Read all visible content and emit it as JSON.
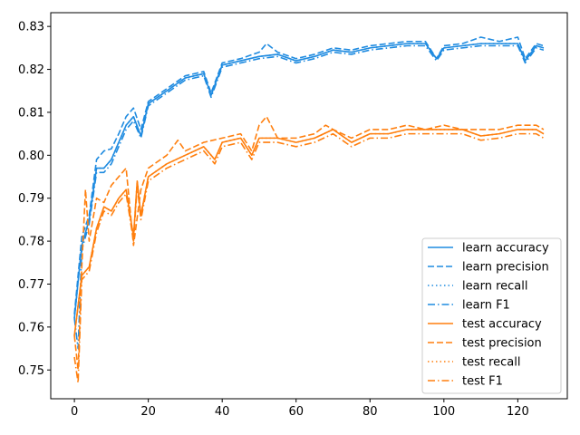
{
  "chart_data": {
    "type": "line",
    "title": "",
    "xlabel": "",
    "ylabel": "",
    "xlim": [
      -6.4,
      133.4
    ],
    "ylim": [
      0.7433,
      0.8332
    ],
    "xticks": [
      0,
      20,
      40,
      60,
      80,
      100,
      120
    ],
    "yticks": [
      0.75,
      0.76,
      0.77,
      0.78,
      0.79,
      0.8,
      0.81,
      0.82,
      0.83
    ],
    "ytick_labels": [
      "0.75",
      "0.76",
      "0.77",
      "0.78",
      "0.79",
      "0.80",
      "0.81",
      "0.82",
      "0.83"
    ],
    "grid": false,
    "legend_position": "lower-right",
    "colors": {
      "learn": "#1f8be0",
      "test": "#ff7f0e"
    },
    "series": [
      {
        "name": "learn accuracy",
        "group": "learn",
        "dash": "solid",
        "x": [
          0,
          2,
          4,
          6,
          8,
          10,
          12,
          14,
          16,
          18,
          20,
          25,
          30,
          35,
          37,
          40,
          45,
          50,
          55,
          60,
          65,
          70,
          75,
          80,
          85,
          90,
          95,
          98,
          100,
          105,
          110,
          115,
          120,
          122,
          125,
          127
        ],
        "y": [
          0.762,
          0.779,
          0.785,
          0.797,
          0.797,
          0.799,
          0.803,
          0.807,
          0.809,
          0.8045,
          0.812,
          0.815,
          0.818,
          0.819,
          0.814,
          0.821,
          0.822,
          0.823,
          0.8235,
          0.822,
          0.823,
          0.8245,
          0.824,
          0.825,
          0.8255,
          0.826,
          0.826,
          0.8225,
          0.825,
          0.8255,
          0.826,
          0.826,
          0.826,
          0.822,
          0.8255,
          0.825
        ]
      },
      {
        "name": "learn precision",
        "group": "learn",
        "dash": "dashed",
        "x": [
          0,
          2,
          4,
          6,
          8,
          10,
          12,
          14,
          16,
          18,
          20,
          25,
          30,
          35,
          37,
          40,
          45,
          50,
          52,
          55,
          60,
          65,
          70,
          75,
          80,
          85,
          90,
          95,
          98,
          100,
          105,
          110,
          115,
          120,
          122,
          125,
          127
        ],
        "y": [
          0.763,
          0.781,
          0.786,
          0.799,
          0.801,
          0.8015,
          0.805,
          0.809,
          0.811,
          0.806,
          0.8125,
          0.8155,
          0.8185,
          0.8195,
          0.8145,
          0.8215,
          0.8225,
          0.824,
          0.826,
          0.824,
          0.8225,
          0.8235,
          0.825,
          0.8245,
          0.8255,
          0.826,
          0.8265,
          0.8265,
          0.8225,
          0.8255,
          0.826,
          0.8275,
          0.8265,
          0.8275,
          0.8225,
          0.826,
          0.8255
        ]
      },
      {
        "name": "learn recall",
        "group": "learn",
        "dash": "dotted",
        "x": [
          0,
          2,
          4,
          6,
          8,
          10,
          12,
          14,
          16,
          18,
          20,
          25,
          30,
          35,
          37,
          40,
          45,
          50,
          55,
          60,
          65,
          70,
          75,
          80,
          85,
          90,
          95,
          98,
          100,
          105,
          110,
          115,
          120,
          122,
          125,
          127
        ],
        "y": [
          0.762,
          0.779,
          0.785,
          0.797,
          0.797,
          0.799,
          0.803,
          0.807,
          0.809,
          0.8045,
          0.812,
          0.815,
          0.818,
          0.819,
          0.814,
          0.821,
          0.822,
          0.823,
          0.8235,
          0.822,
          0.823,
          0.8245,
          0.824,
          0.825,
          0.8255,
          0.826,
          0.826,
          0.8225,
          0.825,
          0.8255,
          0.826,
          0.826,
          0.826,
          0.822,
          0.8255,
          0.825
        ]
      },
      {
        "name": "learn F1",
        "group": "learn",
        "dash": "dashdot",
        "x": [
          0,
          1,
          2,
          4,
          6,
          8,
          10,
          12,
          14,
          16,
          18,
          20,
          25,
          30,
          35,
          37,
          40,
          45,
          50,
          55,
          60,
          65,
          70,
          75,
          80,
          85,
          90,
          95,
          98,
          100,
          105,
          110,
          115,
          120,
          122,
          125,
          127
        ],
        "y": [
          0.762,
          0.755,
          0.778,
          0.784,
          0.796,
          0.796,
          0.798,
          0.802,
          0.806,
          0.808,
          0.804,
          0.8115,
          0.8145,
          0.8175,
          0.8185,
          0.8135,
          0.8205,
          0.8215,
          0.8225,
          0.823,
          0.8215,
          0.8225,
          0.824,
          0.8235,
          0.8245,
          0.825,
          0.8255,
          0.8255,
          0.822,
          0.8245,
          0.825,
          0.8255,
          0.8255,
          0.8255,
          0.8215,
          0.825,
          0.8245
        ]
      },
      {
        "name": "test accuracy",
        "group": "test",
        "dash": "solid",
        "x": [
          0,
          2,
          4,
          6,
          8,
          10,
          12,
          14,
          16,
          17,
          18,
          20,
          25,
          30,
          35,
          38,
          40,
          45,
          48,
          50,
          55,
          60,
          65,
          70,
          75,
          80,
          85,
          90,
          95,
          100,
          105,
          110,
          115,
          120,
          125,
          127
        ],
        "y": [
          0.758,
          0.772,
          0.774,
          0.783,
          0.788,
          0.787,
          0.79,
          0.792,
          0.781,
          0.794,
          0.786,
          0.795,
          0.798,
          0.8,
          0.802,
          0.799,
          0.803,
          0.804,
          0.8,
          0.804,
          0.804,
          0.803,
          0.804,
          0.806,
          0.803,
          0.805,
          0.805,
          0.806,
          0.806,
          0.806,
          0.806,
          0.8045,
          0.805,
          0.806,
          0.806,
          0.805
        ]
      },
      {
        "name": "test precision",
        "group": "test",
        "dash": "dashed",
        "x": [
          0,
          1,
          2,
          3,
          4,
          6,
          8,
          10,
          12,
          14,
          16,
          18,
          20,
          25,
          28,
          30,
          35,
          40,
          45,
          48,
          50,
          52,
          55,
          60,
          65,
          68,
          70,
          75,
          80,
          85,
          90,
          95,
          100,
          105,
          110,
          115,
          120,
          125,
          127
        ],
        "y": [
          0.758,
          0.75,
          0.774,
          0.792,
          0.78,
          0.79,
          0.789,
          0.793,
          0.795,
          0.797,
          0.779,
          0.792,
          0.797,
          0.8,
          0.8035,
          0.801,
          0.803,
          0.804,
          0.805,
          0.801,
          0.807,
          0.809,
          0.804,
          0.804,
          0.805,
          0.807,
          0.806,
          0.804,
          0.806,
          0.806,
          0.807,
          0.806,
          0.807,
          0.806,
          0.806,
          0.806,
          0.807,
          0.807,
          0.806
        ]
      },
      {
        "name": "test recall",
        "group": "test",
        "dash": "dotted",
        "x": [
          0,
          2,
          4,
          6,
          8,
          10,
          12,
          14,
          16,
          17,
          18,
          20,
          25,
          30,
          35,
          38,
          40,
          45,
          48,
          50,
          55,
          60,
          65,
          70,
          75,
          80,
          85,
          90,
          95,
          100,
          105,
          110,
          115,
          120,
          125,
          127
        ],
        "y": [
          0.758,
          0.772,
          0.774,
          0.783,
          0.788,
          0.787,
          0.79,
          0.792,
          0.781,
          0.794,
          0.786,
          0.795,
          0.798,
          0.8,
          0.802,
          0.799,
          0.803,
          0.804,
          0.8,
          0.804,
          0.804,
          0.803,
          0.804,
          0.806,
          0.803,
          0.805,
          0.805,
          0.806,
          0.806,
          0.806,
          0.806,
          0.8045,
          0.805,
          0.806,
          0.806,
          0.805
        ]
      },
      {
        "name": "test F1",
        "group": "test",
        "dash": "dashdot",
        "x": [
          0,
          1,
          2,
          4,
          6,
          8,
          10,
          12,
          14,
          16,
          17,
          18,
          20,
          25,
          30,
          35,
          38,
          40,
          45,
          48,
          50,
          55,
          60,
          65,
          70,
          75,
          80,
          85,
          90,
          95,
          100,
          105,
          110,
          115,
          120,
          125,
          127
        ],
        "y": [
          0.753,
          0.747,
          0.771,
          0.773,
          0.782,
          0.787,
          0.786,
          0.789,
          0.791,
          0.78,
          0.793,
          0.785,
          0.794,
          0.797,
          0.799,
          0.801,
          0.798,
          0.802,
          0.803,
          0.799,
          0.803,
          0.803,
          0.802,
          0.803,
          0.805,
          0.802,
          0.804,
          0.804,
          0.805,
          0.805,
          0.805,
          0.805,
          0.8035,
          0.804,
          0.805,
          0.805,
          0.804
        ]
      }
    ]
  }
}
